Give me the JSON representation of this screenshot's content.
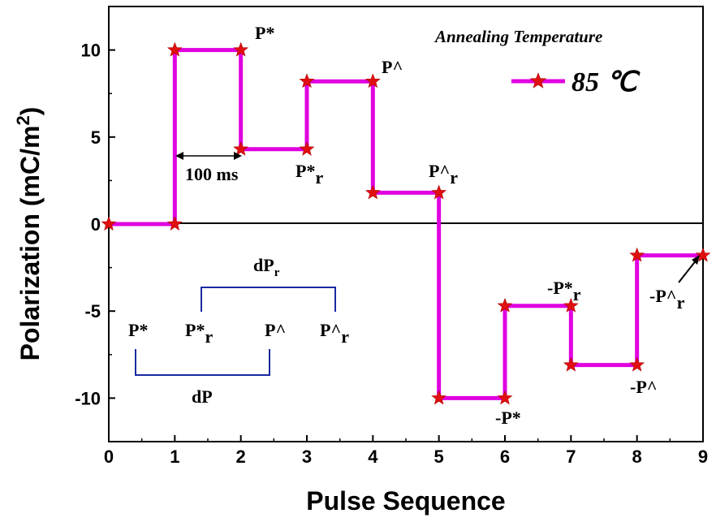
{
  "chart_data": {
    "type": "line",
    "title": "",
    "xlabel": "Pulse Sequence",
    "ylabel": "Polarization (mC/m²)",
    "xlim": [
      0,
      9
    ],
    "ylim": [
      -12.5,
      12.5
    ],
    "xticks": [
      "0",
      "1",
      "2",
      "3",
      "4",
      "5",
      "6",
      "7",
      "8",
      "9"
    ],
    "yticks": [
      "10",
      "5",
      "0",
      "-5",
      "-10"
    ],
    "grid": false,
    "legend_position": "top-right",
    "legend_title": "Annealing Temperature",
    "series": [
      {
        "name": "85 ℃",
        "color": "#e000e0",
        "marker_color": "#e01010",
        "x": [
          0,
          1,
          1,
          2,
          2,
          3,
          3,
          4,
          4,
          5,
          5,
          6,
          6,
          7,
          7,
          8,
          8,
          9
        ],
        "y": [
          0,
          0,
          10,
          10,
          4.3,
          4.3,
          8.2,
          8.2,
          1.8,
          1.8,
          -10,
          -10,
          -4.7,
          -4.7,
          -8.1,
          -8.1,
          -1.8,
          -1.8
        ]
      }
    ],
    "annotations": {
      "p_star": "P*",
      "p_hat": "P^",
      "p_star_r": "P*",
      "p_hat_r": "P^",
      "r_sub": "r",
      "pulse_width": "100 ms",
      "neg_p_star": "-P*",
      "neg_p_hat": "-P^",
      "neg_p_star_r": "-P*",
      "neg_p_hat_r": "-P^",
      "diagram_dpr": "dP",
      "diagram_dp": "dP",
      "diagram_p_star": "P*",
      "diagram_p_star_r": "P*",
      "diagram_p_hat": "P^",
      "diagram_p_hat_r": "P^"
    }
  }
}
